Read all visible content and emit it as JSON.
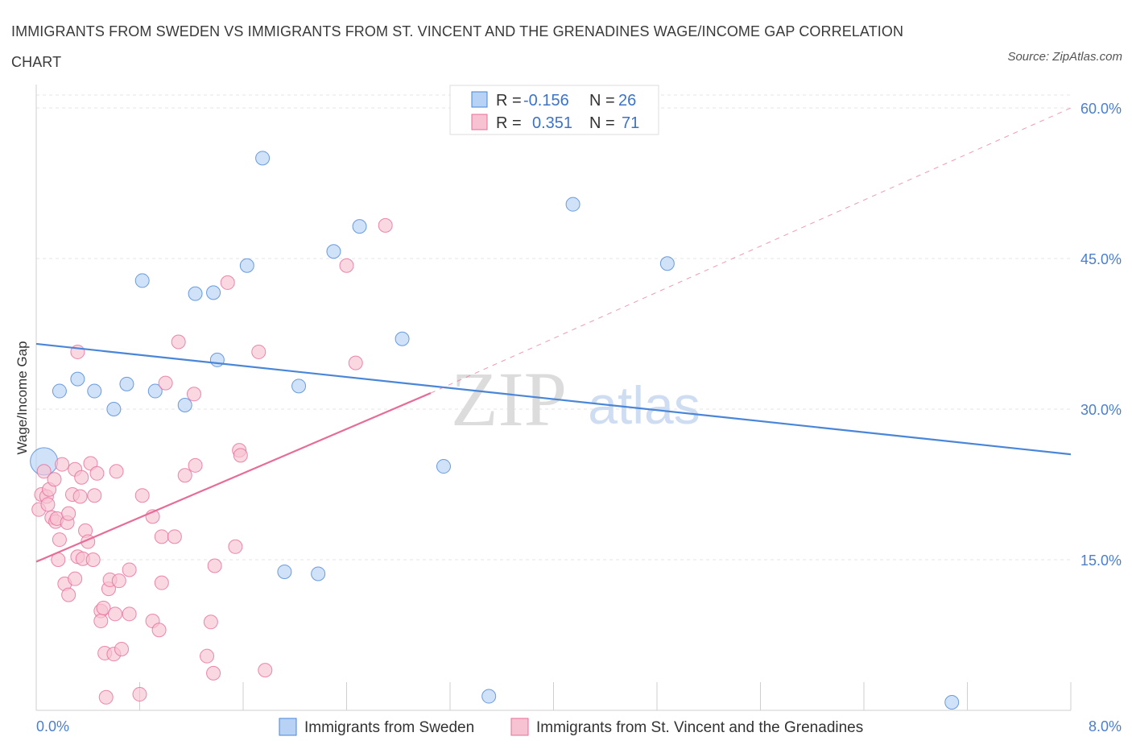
{
  "title": "IMMIGRANTS FROM SWEDEN VS IMMIGRANTS FROM ST. VINCENT AND THE GRENADINES WAGE/INCOME GAP CORRELATION CHART",
  "source": "Source: ZipAtlas.com",
  "watermark": {
    "zip": "ZIP",
    "atlas": "atlas"
  },
  "colors": {
    "blue": "#4a86d8",
    "pink": "#e76c98",
    "blue_fill": "#b7d2f4",
    "pink_fill": "#f7c3d3"
  },
  "legend": {
    "r_label": "R =",
    "n_label": "N =",
    "rows": [
      {
        "r": "-0.156",
        "n": "26"
      },
      {
        "r": "0.351",
        "n": "71"
      }
    ]
  },
  "bottom_legend": [
    "Immigrants from Sweden",
    "Immigrants from St. Vincent and the Grenadines"
  ],
  "chart_data": {
    "type": "scatter",
    "xlabel": "",
    "ylabel": "Wage/Income Gap",
    "xlim": [
      0,
      8
    ],
    "ylim": [
      0,
      60
    ],
    "x_tick_labels": [
      "0.0%",
      "8.0%"
    ],
    "y_ticks": [
      15,
      30,
      45,
      60
    ],
    "y_tick_labels": [
      "15.0%",
      "30.0%",
      "45.0%",
      "60.0%"
    ],
    "series": [
      {
        "name": "Immigrants from Sweden",
        "r": -0.156,
        "n": 26,
        "trend": {
          "x": [
            0,
            8
          ],
          "y": [
            36.5,
            25.5
          ],
          "dashed_extension": false
        },
        "points": [
          [
            0.06,
            24.8
          ],
          [
            0.18,
            31.8
          ],
          [
            0.32,
            33.0
          ],
          [
            0.45,
            31.8
          ],
          [
            0.6,
            30.0
          ],
          [
            0.7,
            32.5
          ],
          [
            0.82,
            42.8
          ],
          [
            0.92,
            31.8
          ],
          [
            1.15,
            30.4
          ],
          [
            1.23,
            41.5
          ],
          [
            1.37,
            41.6
          ],
          [
            1.4,
            34.9
          ],
          [
            1.63,
            44.3
          ],
          [
            1.75,
            55.0
          ],
          [
            2.03,
            32.3
          ],
          [
            1.92,
            13.8
          ],
          [
            2.18,
            13.6
          ],
          [
            2.3,
            45.7
          ],
          [
            2.5,
            48.2
          ],
          [
            2.83,
            37.0
          ],
          [
            3.15,
            24.3
          ],
          [
            4.15,
            50.4
          ],
          [
            4.26,
            58.2
          ],
          [
            4.88,
            44.5
          ],
          [
            3.5,
            1.4
          ],
          [
            7.08,
            0.8
          ]
        ]
      },
      {
        "name": "Immigrants from St. Vincent and the Grenadines",
        "r": 0.351,
        "n": 71,
        "trend": {
          "x": [
            0,
            3.05
          ],
          "y": [
            14.8,
            31.6
          ],
          "dashed_extension": true,
          "dash_to": {
            "x": 8,
            "y": 60
          }
        },
        "points": [
          [
            0.02,
            20.0
          ],
          [
            0.04,
            21.5
          ],
          [
            0.06,
            23.8
          ],
          [
            0.08,
            21.3
          ],
          [
            0.09,
            20.5
          ],
          [
            0.1,
            22.0
          ],
          [
            0.12,
            19.2
          ],
          [
            0.14,
            23.0
          ],
          [
            0.15,
            18.8
          ],
          [
            0.16,
            19.1
          ],
          [
            0.17,
            15.0
          ],
          [
            0.18,
            17.0
          ],
          [
            0.2,
            24.5
          ],
          [
            0.22,
            12.6
          ],
          [
            0.24,
            18.7
          ],
          [
            0.25,
            19.6
          ],
          [
            0.25,
            11.5
          ],
          [
            0.28,
            21.5
          ],
          [
            0.3,
            24.0
          ],
          [
            0.3,
            13.1
          ],
          [
            0.32,
            15.3
          ],
          [
            0.32,
            35.7
          ],
          [
            0.34,
            21.3
          ],
          [
            0.35,
            23.2
          ],
          [
            0.36,
            15.1
          ],
          [
            0.38,
            17.9
          ],
          [
            0.4,
            16.8
          ],
          [
            0.42,
            24.6
          ],
          [
            0.44,
            15.0
          ],
          [
            0.45,
            21.4
          ],
          [
            0.47,
            23.6
          ],
          [
            0.5,
            9.9
          ],
          [
            0.5,
            8.9
          ],
          [
            0.52,
            10.2
          ],
          [
            0.53,
            5.7
          ],
          [
            0.54,
            1.3
          ],
          [
            0.56,
            12.1
          ],
          [
            0.57,
            13.0
          ],
          [
            0.6,
            5.6
          ],
          [
            0.61,
            9.6
          ],
          [
            0.62,
            23.8
          ],
          [
            0.64,
            12.9
          ],
          [
            0.66,
            6.1
          ],
          [
            0.72,
            14.0
          ],
          [
            0.8,
            1.6
          ],
          [
            0.82,
            21.4
          ],
          [
            0.9,
            8.9
          ],
          [
            0.9,
            19.3
          ],
          [
            0.95,
            8.0
          ],
          [
            0.97,
            17.3
          ],
          [
            0.97,
            12.7
          ],
          [
            1.0,
            32.6
          ],
          [
            1.07,
            17.3
          ],
          [
            1.1,
            36.7
          ],
          [
            1.15,
            23.4
          ],
          [
            1.22,
            31.5
          ],
          [
            1.23,
            24.4
          ],
          [
            1.32,
            5.4
          ],
          [
            1.35,
            8.8
          ],
          [
            1.37,
            3.7
          ],
          [
            1.38,
            14.4
          ],
          [
            1.48,
            42.6
          ],
          [
            1.54,
            16.3
          ],
          [
            1.57,
            25.9
          ],
          [
            1.58,
            25.4
          ],
          [
            1.72,
            35.7
          ],
          [
            1.77,
            4.0
          ],
          [
            2.4,
            44.3
          ],
          [
            2.47,
            34.6
          ],
          [
            2.7,
            48.3
          ],
          [
            0.72,
            9.6
          ]
        ]
      }
    ]
  }
}
